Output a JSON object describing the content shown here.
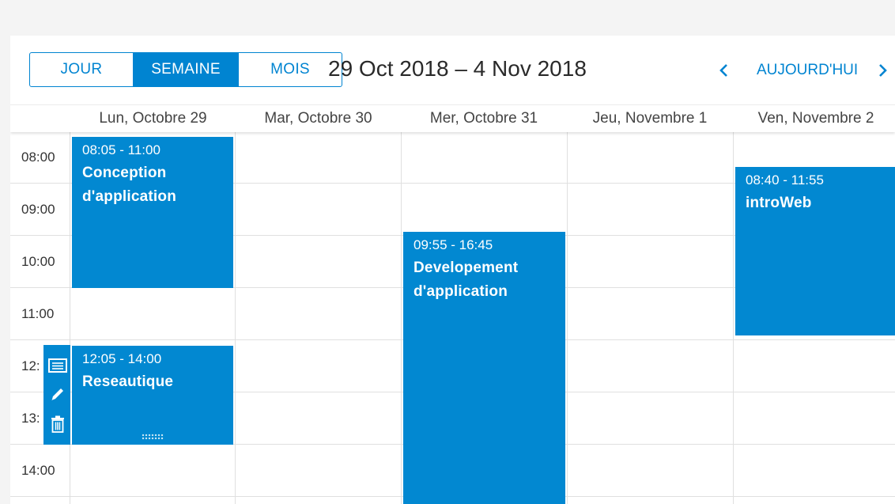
{
  "toolbar": {
    "views": [
      "JOUR",
      "SEMAINE",
      "MOIS"
    ],
    "active_view": "SEMAINE",
    "range_title": "29 Oct 2018 – 4 Nov 2018",
    "today_label": "AUJOURD'HUI"
  },
  "days": [
    "Lun, Octobre 29",
    "Mar, Octobre 30",
    "Mer, Octobre 31",
    "Jeu, Novembre 1",
    "Ven, Novembre 2"
  ],
  "time_labels": [
    "08:00",
    "09:00",
    "10:00",
    "11:00",
    "12:",
    "13:",
    "14:00"
  ],
  "appointments": [
    {
      "day": 0,
      "time": "08:05 - 11:00",
      "subject": "Conception d'application"
    },
    {
      "day": 0,
      "time": "12:05 - 14:00",
      "subject": "Reseautique"
    },
    {
      "day": 2,
      "time": "09:55 - 16:45",
      "subject": "Developement d'application"
    },
    {
      "day": 4,
      "time": "08:40 - 11:55",
      "subject": "introWeb"
    }
  ],
  "tooltip_actions": [
    "details-icon",
    "edit-icon",
    "delete-icon"
  ],
  "colors": {
    "accent": "#0084d1",
    "appointment": "#0288d1"
  }
}
